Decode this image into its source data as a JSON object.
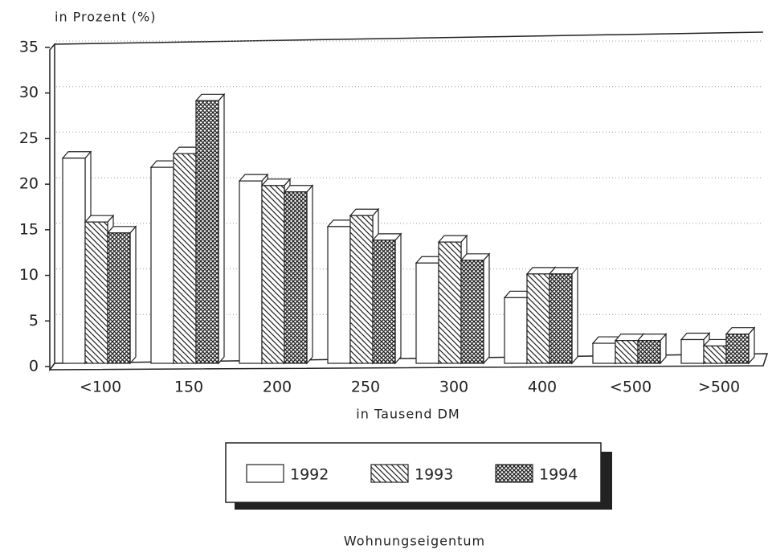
{
  "chart_data": {
    "type": "bar3d",
    "ylabel": "in Prozent (%)",
    "xlabel": "in Tausend DM",
    "caption": "Wohnungseigentum",
    "categories": [
      "<100",
      "150",
      "200",
      "250",
      "300",
      "400",
      "<500",
      ">500"
    ],
    "series": [
      {
        "name": "1992",
        "color": "#ffffff",
        "pattern": "none",
        "values": [
          22.5,
          21.5,
          20,
          15,
          11,
          7.2,
          2.2,
          2.6
        ]
      },
      {
        "name": "1993",
        "color": "#ffffff",
        "pattern": "hatch",
        "values": [
          15.5,
          23,
          19.5,
          16.2,
          13.3,
          9.8,
          2.5,
          1.9
        ]
      },
      {
        "name": "1994",
        "color": "#ffffff",
        "pattern": "crosshatch",
        "values": [
          14.3,
          28.8,
          18.8,
          13.5,
          11.3,
          9.8,
          2.5,
          3.2
        ]
      }
    ],
    "ylim": [
      0,
      35
    ],
    "yticks": [
      0,
      5,
      10,
      15,
      20,
      25,
      30,
      35
    ],
    "grid": true,
    "legend": "bottom"
  }
}
